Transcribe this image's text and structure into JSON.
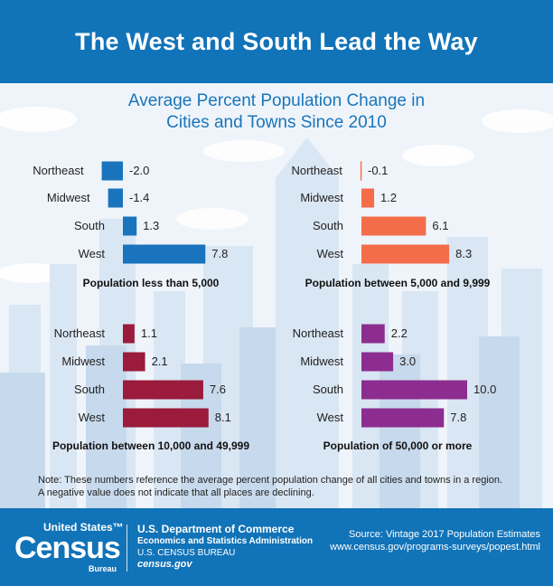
{
  "header": {
    "title": "The West and South Lead the Way"
  },
  "subtitle": {
    "line1": "Average Percent Population Change in",
    "line2": "Cities and Towns Since 2010"
  },
  "colors": {
    "header_bg": "#1173b8",
    "panel_1": "#1a73bd",
    "panel_2": "#f36d4b",
    "panel_3": "#9a1b3c",
    "panel_4": "#8c2d8f",
    "skyline": "#d9e6f3"
  },
  "chart_data": [
    {
      "type": "bar",
      "orientation": "horizontal",
      "title": "Population less than 5,000",
      "categories": [
        "Northeast",
        "Midwest",
        "South",
        "West"
      ],
      "values": [
        -2.0,
        -1.4,
        1.3,
        7.8
      ],
      "value_labels": [
        "-2.0",
        "-1.4",
        "1.3",
        "7.8"
      ],
      "color": "#1a73bd"
    },
    {
      "type": "bar",
      "orientation": "horizontal",
      "title": "Population between 5,000 and 9,999",
      "categories": [
        "Northeast",
        "Midwest",
        "South",
        "West"
      ],
      "values": [
        -0.1,
        1.2,
        6.1,
        8.3
      ],
      "value_labels": [
        "-0.1",
        "1.2",
        "6.1",
        "8.3"
      ],
      "color": "#f36d4b"
    },
    {
      "type": "bar",
      "orientation": "horizontal",
      "title": "Population between 10,000 and 49,999",
      "categories": [
        "Northeast",
        "Midwest",
        "South",
        "West"
      ],
      "values": [
        1.1,
        2.1,
        7.6,
        8.1
      ],
      "value_labels": [
        "1.1",
        "2.1",
        "7.6",
        "8.1"
      ],
      "color": "#9a1b3c"
    },
    {
      "type": "bar",
      "orientation": "horizontal",
      "title": "Population of 50,000 or more",
      "categories": [
        "Northeast",
        "Midwest",
        "South",
        "West"
      ],
      "values": [
        2.2,
        3.0,
        10.0,
        7.8
      ],
      "value_labels": [
        "2.2",
        "3.0",
        "10.0",
        "7.8"
      ],
      "color": "#8c2d8f"
    }
  ],
  "note": {
    "line1": "Note: These numbers reference the average percent population change of all cities and towns in a region.",
    "line2": "A negative value does not indicate that all places are declining."
  },
  "footer": {
    "logo_small": "United States™",
    "logo_big": "Census",
    "logo_bureau": "Bureau",
    "dept_line1": "U.S. Department of Commerce",
    "dept_line2": "Economics and Statistics Administration",
    "dept_line3": "U.S. CENSUS BUREAU",
    "dept_line4": "census.gov",
    "source_line1": "Source: Vintage 2017 Population Estimates",
    "source_line2": "www.census.gov/programs-surveys/popest.html"
  }
}
